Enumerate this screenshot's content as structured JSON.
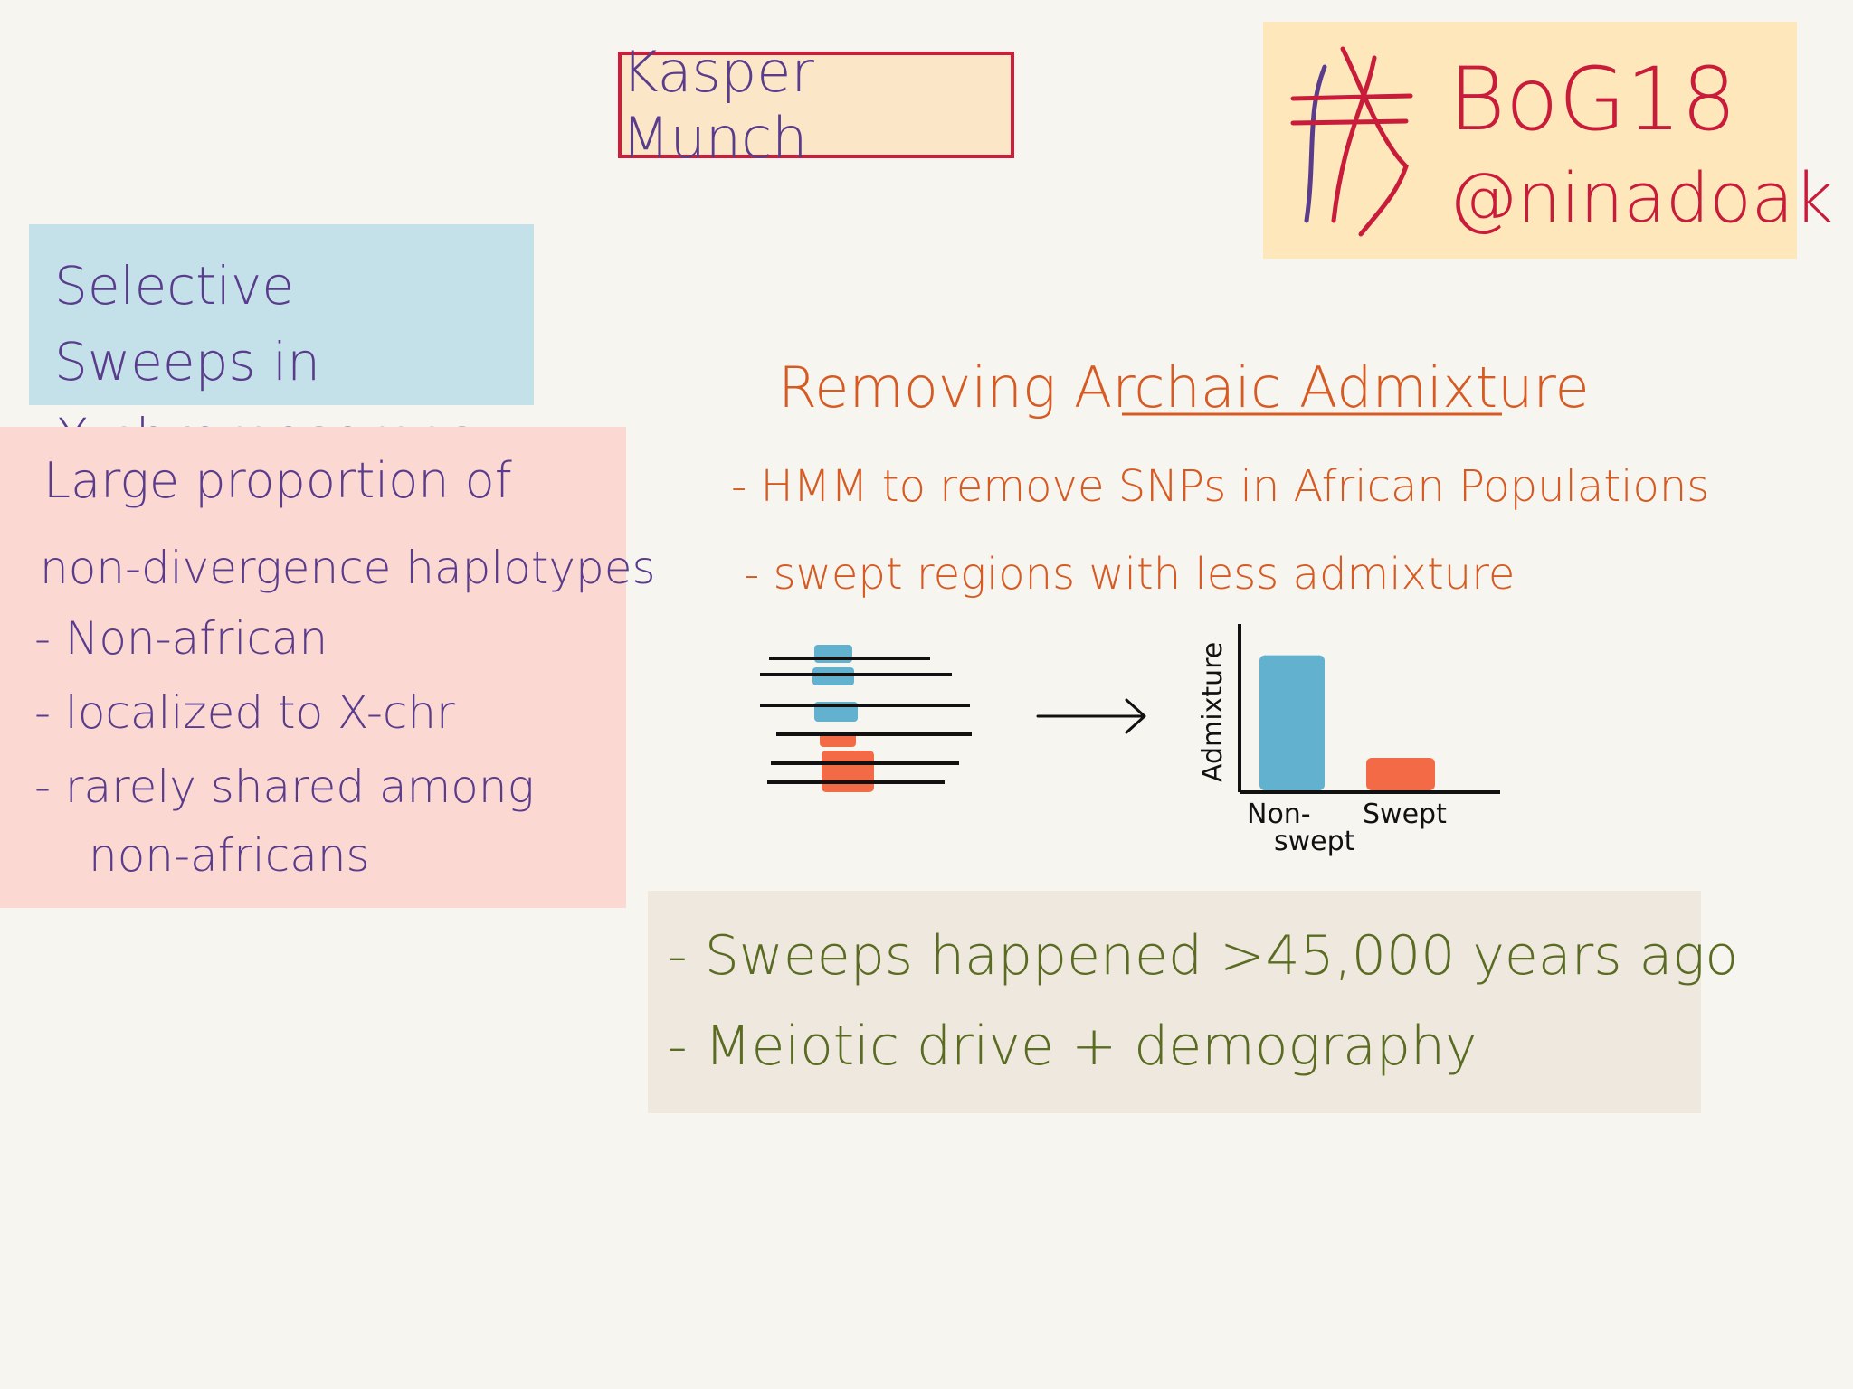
{
  "speaker": {
    "name": "Kasper Munch"
  },
  "tag": {
    "hashtag": "BoG18",
    "handle": "@ninadoak"
  },
  "title": {
    "line1": "Selective Sweeps in",
    "line2": "X-chromosomes"
  },
  "findings": {
    "line1": "Large proportion of",
    "line2": "non-divergence haplotypes",
    "line3": "- Non-african",
    "line4": "- localized to X-chr",
    "line5": "- rarely shared among",
    "line6": "non-africans"
  },
  "admixture": {
    "heading": "Removing Archaic Admixture",
    "bullet1": "- HMM to remove SNPs in African Populations",
    "bullet2": "- swept regions with less admixture"
  },
  "chart_data": {
    "type": "bar",
    "ylabel": "Admixture",
    "xlabel": "",
    "categories": [
      "Non-swept",
      "Swept"
    ],
    "category_lines": [
      [
        "Non-",
        "swept"
      ],
      [
        "Swept"
      ]
    ],
    "values": [
      0.83,
      0.2
    ],
    "ylim": [
      0,
      1
    ],
    "colors": [
      "#62b1ce",
      "#f36b46"
    ]
  },
  "colors": {
    "background": "#f6f5f0",
    "purple_ink": "#5a3c8c",
    "red_ink": "#c81c3a",
    "orange_ink": "#d65a22",
    "green_ink": "#5a6b22",
    "blue_fill": "#62b1ce",
    "orange_fill": "#f36b46"
  },
  "conclusion": {
    "line1": "- Sweeps happened >45,000 years ago",
    "line2": "- Meiotic drive + demography"
  }
}
